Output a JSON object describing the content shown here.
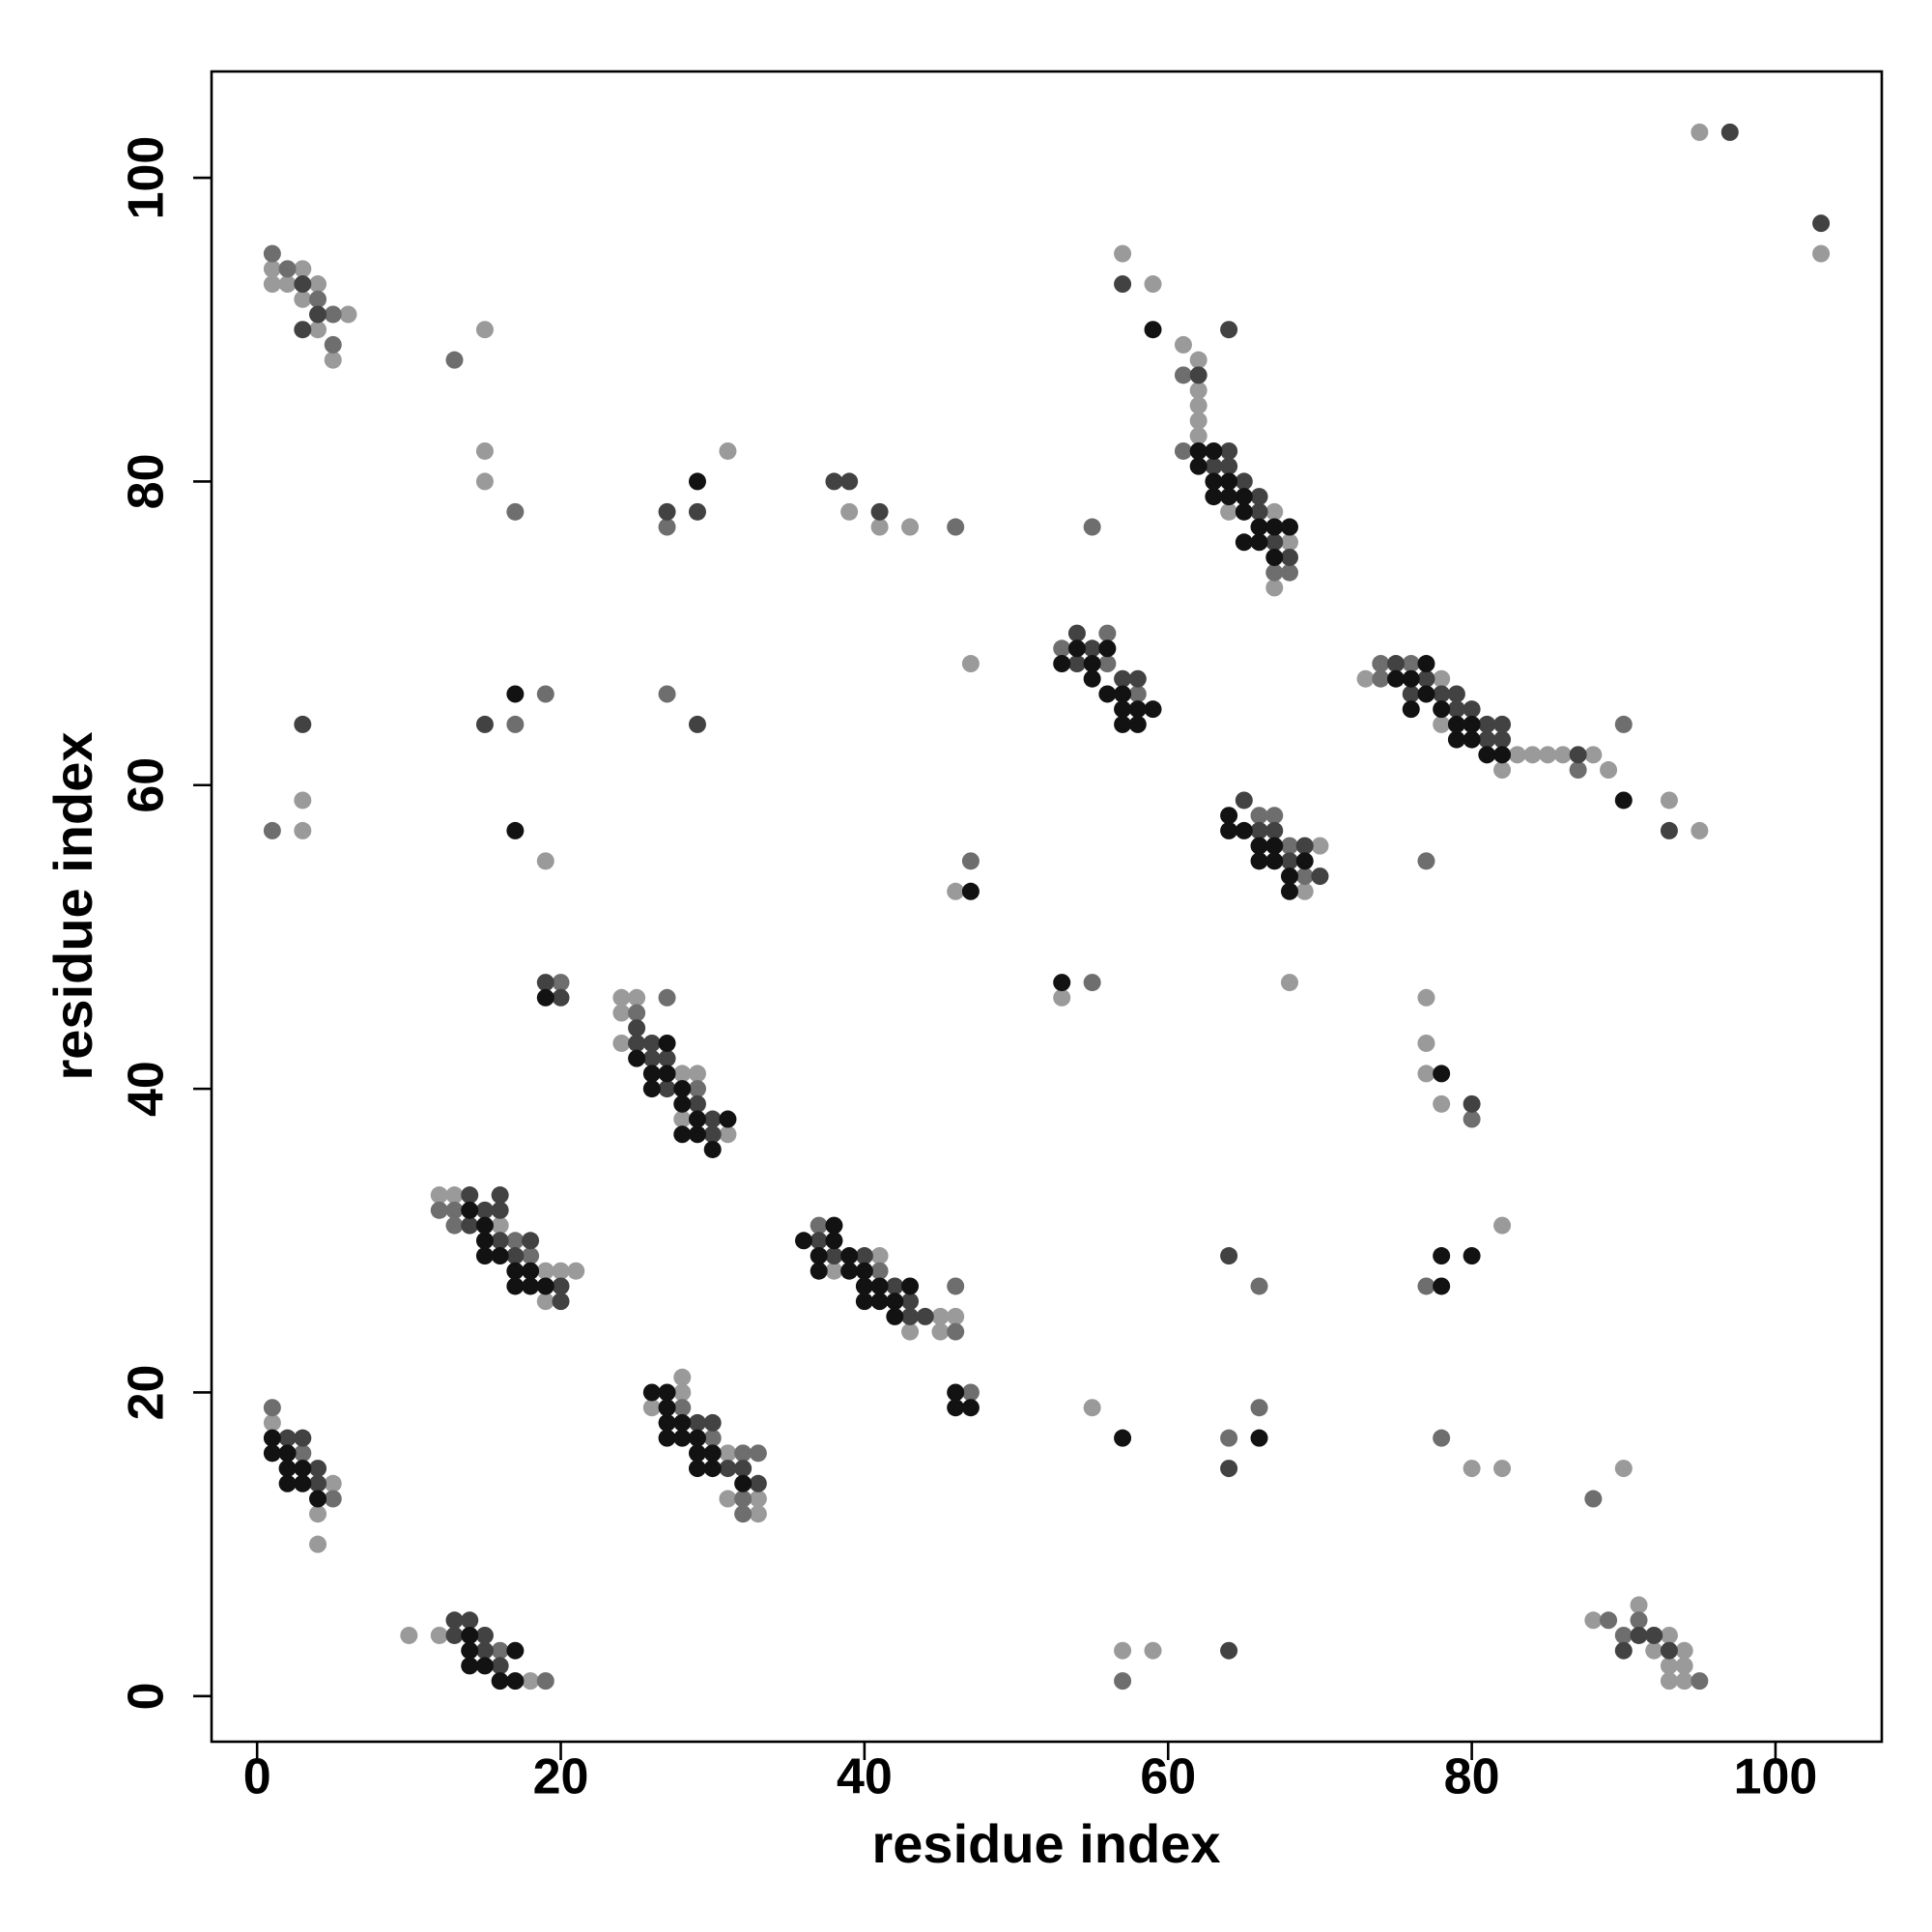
{
  "chart_data": {
    "type": "scatter",
    "xlabel": "residue index",
    "ylabel": "residue index",
    "xlim": [
      -3,
      107
    ],
    "ylim": [
      -3,
      107
    ],
    "xticks": [
      0,
      20,
      40,
      60,
      80,
      100
    ],
    "yticks": [
      0,
      20,
      40,
      60,
      80,
      100
    ],
    "grid": false,
    "series": [
      {
        "color": "#9a9a9a",
        "x": [
          1,
          1,
          2,
          3,
          3,
          4,
          4,
          5,
          6,
          15,
          15,
          15,
          31,
          39,
          41,
          43,
          47,
          3,
          3,
          19,
          24,
          25,
          24,
          24,
          28,
          29,
          28,
          31,
          12,
          13,
          16,
          19,
          20,
          21,
          19,
          41,
          38,
          45,
          46,
          43,
          45,
          1,
          5,
          4,
          4,
          28,
          28,
          26,
          31,
          31,
          33,
          33,
          10,
          12,
          18,
          53,
          55,
          57,
          59,
          46,
          70,
          69,
          68,
          57,
          59,
          61,
          62,
          62,
          62,
          62,
          62,
          64,
          67,
          68,
          67,
          73,
          78,
          78,
          83,
          84,
          85,
          86,
          88,
          82,
          89,
          93,
          95,
          77,
          77,
          77,
          78,
          82,
          80,
          82,
          90,
          88,
          91,
          92,
          93,
          94,
          93,
          94,
          93,
          94,
          95,
          103
        ],
        "values": [
          94,
          93,
          93,
          94,
          92,
          93,
          90,
          88,
          91,
          90,
          82,
          80,
          82,
          78,
          77,
          77,
          68,
          59,
          57,
          55,
          46,
          46,
          45,
          43,
          41,
          41,
          38,
          37,
          33,
          33,
          31,
          28,
          28,
          28,
          26,
          29,
          28,
          25,
          25,
          24,
          24,
          18,
          14,
          12,
          10,
          21,
          20,
          19,
          16,
          13,
          13,
          12,
          4,
          4,
          1,
          46,
          19,
          3,
          3,
          53,
          56,
          53,
          47,
          95,
          93,
          89,
          88,
          86,
          85,
          84,
          83,
          78,
          78,
          76,
          73,
          67,
          67,
          64,
          62,
          62,
          62,
          62,
          62,
          61,
          61,
          59,
          57,
          46,
          43,
          41,
          39,
          31,
          15,
          15,
          15,
          5,
          6,
          3,
          4,
          3,
          2,
          2,
          1,
          1,
          103,
          95
        ]
      },
      {
        "color": "#6e6e6e",
        "x": [
          1,
          2,
          4,
          5,
          5,
          13,
          17,
          27,
          46,
          1,
          17,
          19,
          27,
          20,
          27,
          25,
          29,
          12,
          13,
          13,
          17,
          18,
          37,
          41,
          46,
          46,
          47,
          1,
          3,
          5,
          28,
          30,
          32,
          33,
          32,
          32,
          16,
          19,
          55,
          57,
          64,
          66,
          66,
          47,
          53,
          56,
          56,
          58,
          66,
          67,
          68,
          69,
          55,
          61,
          61,
          67,
          68,
          74,
          74,
          76,
          87,
          90,
          77,
          80,
          77,
          78,
          88,
          89,
          90,
          91,
          95
        ],
        "values": [
          95,
          94,
          92,
          91,
          89,
          88,
          78,
          77,
          77,
          57,
          64,
          66,
          66,
          47,
          46,
          45,
          40,
          32,
          32,
          31,
          30,
          29,
          31,
          28,
          24,
          27,
          20,
          19,
          16,
          13,
          19,
          17,
          16,
          16,
          13,
          12,
          3,
          1,
          47,
          1,
          17,
          19,
          27,
          55,
          69,
          70,
          68,
          66,
          58,
          58,
          56,
          54,
          77,
          87,
          82,
          74,
          74,
          68,
          67,
          68,
          61,
          64,
          55,
          38,
          27,
          17,
          13,
          5,
          4,
          5,
          1
        ]
      },
      {
        "color": "#424242",
        "x": [
          3,
          3,
          4,
          27,
          29,
          38,
          39,
          41,
          3,
          15,
          29,
          19,
          20,
          25,
          25,
          26,
          26,
          27,
          27,
          29,
          30,
          30,
          14,
          16,
          15,
          16,
          14,
          16,
          18,
          17,
          20,
          20,
          37,
          38,
          40,
          42,
          43,
          43,
          44,
          2,
          3,
          4,
          4,
          29,
          30,
          31,
          32,
          33,
          13,
          14,
          13,
          15,
          15,
          16,
          64,
          64,
          64,
          54,
          55,
          54,
          57,
          58,
          65,
          66,
          67,
          69,
          68,
          70,
          57,
          64,
          62,
          64,
          63,
          64,
          65,
          66,
          66,
          67,
          68,
          75,
          77,
          76,
          78,
          79,
          79,
          80,
          81,
          82,
          81,
          82,
          87,
          93,
          80,
          91,
          92,
          93,
          90,
          97,
          103
        ],
        "values": [
          93,
          90,
          91,
          78,
          78,
          80,
          80,
          78,
          64,
          64,
          64,
          47,
          46,
          44,
          43,
          43,
          42,
          42,
          40,
          39,
          38,
          37,
          33,
          33,
          32,
          32,
          31,
          30,
          30,
          29,
          27,
          26,
          30,
          29,
          29,
          27,
          26,
          25,
          25,
          17,
          17,
          15,
          14,
          18,
          18,
          15,
          15,
          14,
          5,
          5,
          4,
          4,
          3,
          2,
          3,
          15,
          29,
          70,
          69,
          68,
          67,
          67,
          59,
          57,
          57,
          56,
          55,
          54,
          93,
          90,
          87,
          82,
          81,
          81,
          80,
          79,
          78,
          76,
          75,
          68,
          67,
          66,
          66,
          66,
          65,
          65,
          64,
          64,
          63,
          63,
          62,
          57,
          39,
          4,
          4,
          3,
          3,
          103,
          97
        ]
      },
      {
        "color": "#121212",
        "x": [
          29,
          17,
          17,
          19,
          27,
          25,
          26,
          27,
          26,
          28,
          28,
          29,
          31,
          28,
          29,
          30,
          14,
          15,
          15,
          15,
          16,
          17,
          18,
          17,
          18,
          19,
          36,
          38,
          38,
          37,
          39,
          37,
          39,
          40,
          40,
          41,
          43,
          40,
          41,
          42,
          42,
          46,
          46,
          47,
          1,
          1,
          2,
          2,
          3,
          2,
          3,
          4,
          26,
          27,
          27,
          27,
          28,
          27,
          28,
          29,
          29,
          30,
          29,
          30,
          32,
          14,
          14,
          17,
          14,
          15,
          16,
          17,
          53,
          57,
          66,
          47,
          53,
          54,
          56,
          55,
          55,
          56,
          57,
          57,
          58,
          59,
          57,
          58,
          64,
          64,
          65,
          66,
          67,
          66,
          67,
          69,
          68,
          68,
          59,
          62,
          63,
          62,
          63,
          64,
          63,
          64,
          65,
          65,
          66,
          67,
          68,
          65,
          66,
          67,
          77,
          75,
          76,
          77,
          76,
          78,
          79,
          80,
          79,
          80,
          81,
          82,
          90,
          78,
          78,
          78,
          80
        ],
        "values": [
          80,
          66,
          57,
          46,
          43,
          42,
          41,
          41,
          40,
          40,
          39,
          38,
          38,
          37,
          37,
          36,
          32,
          31,
          30,
          29,
          29,
          28,
          28,
          27,
          27,
          27,
          30,
          31,
          30,
          29,
          29,
          28,
          28,
          28,
          27,
          27,
          27,
          26,
          26,
          26,
          25,
          20,
          19,
          19,
          17,
          16,
          16,
          15,
          15,
          14,
          14,
          13,
          20,
          20,
          19,
          18,
          18,
          17,
          17,
          17,
          16,
          16,
          15,
          15,
          14,
          4,
          3,
          3,
          2,
          2,
          1,
          1,
          47,
          17,
          17,
          53,
          68,
          69,
          69,
          68,
          67,
          66,
          66,
          65,
          65,
          65,
          64,
          64,
          58,
          57,
          57,
          56,
          56,
          55,
          55,
          55,
          54,
          53,
          90,
          82,
          82,
          81,
          80,
          80,
          79,
          79,
          79,
          78,
          77,
          77,
          77,
          76,
          76,
          75,
          68,
          67,
          67,
          66,
          65,
          65,
          64,
          64,
          63,
          63,
          62,
          62,
          59,
          41,
          29,
          27,
          29
        ]
      }
    ]
  }
}
